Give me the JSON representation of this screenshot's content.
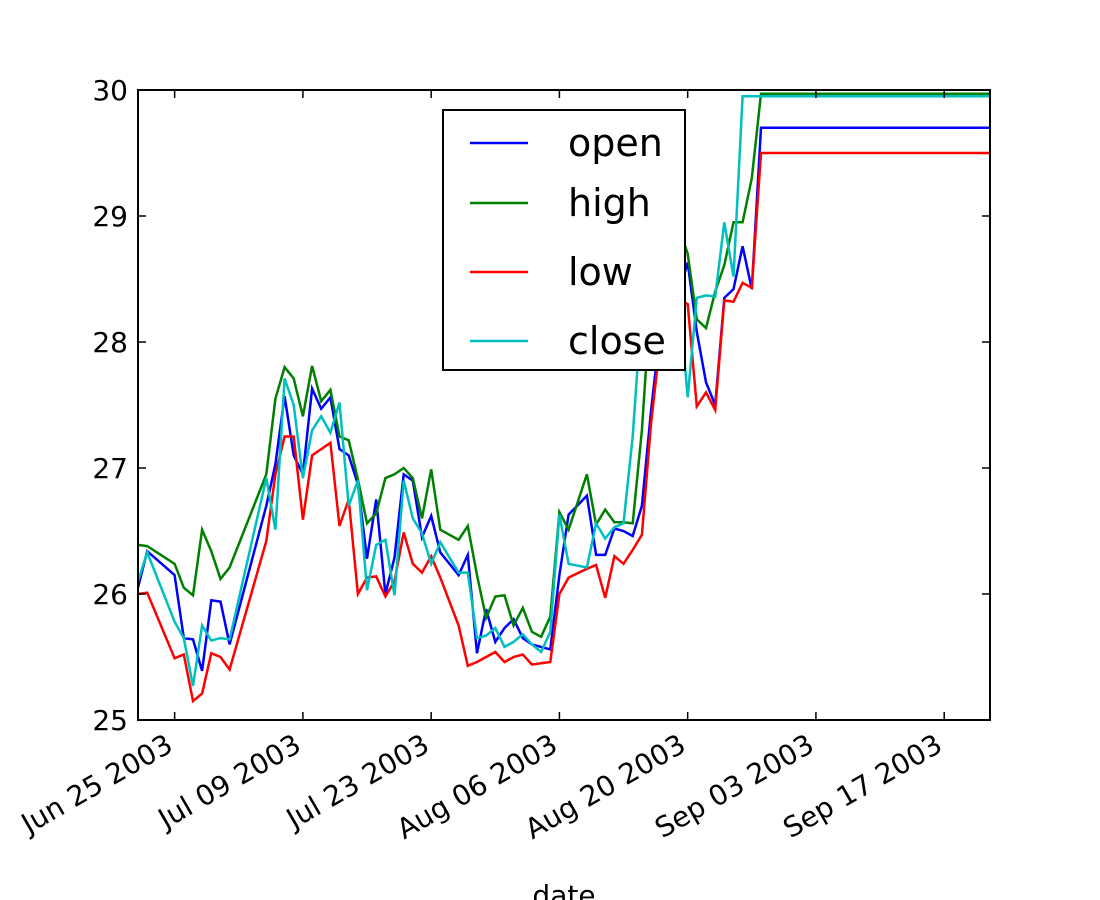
{
  "chart_data": {
    "type": "line",
    "title": "",
    "xlabel": "date",
    "ylabel": "",
    "xlim": [
      "2003-06-21",
      "2003-09-22"
    ],
    "ylim": [
      25,
      30
    ],
    "grid": false,
    "legend_position": "top-center",
    "y_ticks": [
      "25",
      "26",
      "27",
      "28",
      "29",
      "30"
    ],
    "x_ticks": [
      {
        "date": "2003-06-25",
        "label": "Jun 25 2003"
      },
      {
        "date": "2003-07-09",
        "label": "Jul 09 2003"
      },
      {
        "date": "2003-07-23",
        "label": "Jul 23 2003"
      },
      {
        "date": "2003-08-06",
        "label": "Aug 06 2003"
      },
      {
        "date": "2003-08-20",
        "label": "Aug 20 2003"
      },
      {
        "date": "2003-09-03",
        "label": "Sep 03 2003"
      },
      {
        "date": "2003-09-17",
        "label": "Sep 17 2003"
      }
    ],
    "x": [
      "2003-06-21",
      "2003-06-22",
      "2003-06-25",
      "2003-06-26",
      "2003-06-27",
      "2003-06-28",
      "2003-06-29",
      "2003-06-30",
      "2003-07-01",
      "2003-07-05",
      "2003-07-06",
      "2003-07-07",
      "2003-07-08",
      "2003-07-09",
      "2003-07-10",
      "2003-07-11",
      "2003-07-12",
      "2003-07-13",
      "2003-07-14",
      "2003-07-15",
      "2003-07-16",
      "2003-07-17",
      "2003-07-18",
      "2003-07-19",
      "2003-07-20",
      "2003-07-21",
      "2003-07-22",
      "2003-07-23",
      "2003-07-24",
      "2003-07-26",
      "2003-07-27",
      "2003-07-28",
      "2003-07-29",
      "2003-07-30",
      "2003-07-31",
      "2003-08-01",
      "2003-08-02",
      "2003-08-03",
      "2003-08-04",
      "2003-08-05",
      "2003-08-06",
      "2003-08-07",
      "2003-08-09",
      "2003-08-10",
      "2003-08-11",
      "2003-08-12",
      "2003-08-13",
      "2003-08-14",
      "2003-08-15",
      "2003-08-16",
      "2003-08-17",
      "2003-08-18",
      "2003-08-19",
      "2003-08-20",
      "2003-08-21",
      "2003-08-22",
      "2003-08-23",
      "2003-08-24",
      "2003-08-25",
      "2003-08-26",
      "2003-08-27",
      "2003-08-28",
      "2003-08-29",
      "2003-08-30",
      "2003-08-31",
      "2003-09-01",
      "2003-09-02",
      "2003-09-03",
      "2003-09-04",
      "2003-09-05",
      "2003-09-06",
      "2003-09-07",
      "2003-09-08",
      "2003-09-09",
      "2003-09-10",
      "2003-09-11",
      "2003-09-12",
      "2003-09-13",
      "2003-09-14",
      "2003-09-15",
      "2003-09-16",
      "2003-09-17",
      "2003-09-18",
      "2003-09-19",
      "2003-09-20",
      "2003-09-21",
      "2003-09-22"
    ],
    "series": [
      {
        "name": "open",
        "color": "#0000ff",
        "values": [
          26.05,
          26.34,
          26.15,
          25.65,
          25.64,
          25.39,
          25.95,
          25.94,
          25.6,
          26.7,
          27.03,
          27.57,
          27.1,
          26.95,
          27.63,
          27.47,
          27.56,
          27.15,
          27.1,
          26.87,
          26.28,
          26.75,
          26.0,
          26.29,
          26.95,
          26.9,
          26.45,
          26.62,
          26.33,
          26.15,
          26.31,
          25.53,
          25.88,
          25.62,
          25.73,
          25.8,
          25.65,
          25.6,
          25.58,
          25.56,
          26.15,
          26.63,
          26.78,
          26.31,
          26.31,
          26.52,
          26.5,
          26.46,
          26.7,
          27.45,
          28.1,
          28.23,
          28.39,
          28.63,
          28.08,
          27.68,
          27.5,
          28.35,
          28.42,
          28.76,
          28.42,
          29.7,
          29.7,
          29.7,
          29.7,
          29.7,
          29.7,
          29.7,
          29.7,
          29.7,
          29.7,
          29.7,
          29.7,
          29.7,
          29.7,
          29.7,
          29.7,
          29.7,
          29.7,
          29.7,
          29.7,
          29.7,
          29.7,
          29.7,
          29.7,
          29.7,
          29.7
        ]
      },
      {
        "name": "high",
        "color": "#008000",
        "values": [
          26.39,
          26.38,
          26.24,
          26.05,
          25.99,
          26.51,
          26.34,
          26.12,
          26.21,
          26.95,
          27.55,
          27.8,
          27.71,
          27.41,
          27.81,
          27.53,
          27.62,
          27.25,
          27.22,
          26.91,
          26.56,
          26.64,
          26.92,
          26.95,
          27.0,
          26.92,
          26.6,
          26.99,
          26.51,
          26.43,
          26.54,
          26.15,
          25.81,
          25.98,
          25.99,
          25.75,
          25.89,
          25.7,
          25.66,
          25.82,
          26.65,
          26.51,
          26.95,
          26.55,
          26.67,
          26.57,
          26.57,
          26.56,
          27.3,
          28.39,
          28.46,
          28.75,
          28.92,
          28.7,
          28.18,
          28.11,
          28.4,
          28.61,
          28.95,
          28.95,
          29.3,
          29.97,
          29.97,
          29.97,
          29.97,
          29.97,
          29.97,
          29.97,
          29.97,
          29.97,
          29.97,
          29.97,
          29.97,
          29.97,
          29.97,
          29.97,
          29.97,
          29.97,
          29.97,
          29.97,
          29.97,
          29.97,
          29.97,
          29.97,
          29.97,
          29.97,
          29.97
        ]
      },
      {
        "name": "low",
        "color": "#ff0000",
        "values": [
          26.0,
          26.01,
          25.49,
          25.52,
          25.15,
          25.21,
          25.53,
          25.5,
          25.4,
          26.42,
          26.95,
          27.25,
          27.25,
          26.59,
          27.1,
          27.15,
          27.2,
          26.54,
          26.75,
          26.0,
          26.13,
          26.14,
          25.98,
          26.1,
          26.49,
          26.24,
          26.17,
          26.3,
          26.13,
          25.75,
          25.43,
          25.46,
          25.5,
          25.54,
          25.46,
          25.5,
          25.52,
          25.44,
          25.45,
          25.46,
          26.0,
          26.13,
          26.2,
          26.23,
          25.97,
          26.3,
          26.24,
          26.35,
          26.47,
          27.35,
          28.0,
          28.18,
          28.34,
          28.3,
          27.49,
          27.6,
          27.46,
          28.33,
          28.32,
          28.47,
          28.43,
          29.5,
          29.5,
          29.5,
          29.5,
          29.5,
          29.5,
          29.5,
          29.5,
          29.5,
          29.5,
          29.5,
          29.5,
          29.5,
          29.5,
          29.5,
          29.5,
          29.5,
          29.5,
          29.5,
          29.5,
          29.5,
          29.5,
          29.5,
          29.5,
          29.5,
          29.5
        ]
      },
      {
        "name": "close",
        "color": "#00bfbf",
        "values": [
          26.1,
          26.33,
          25.78,
          25.65,
          25.27,
          25.75,
          25.63,
          25.65,
          25.64,
          26.92,
          26.51,
          27.71,
          27.5,
          26.92,
          27.3,
          27.41,
          27.28,
          27.52,
          26.7,
          26.9,
          26.03,
          26.39,
          26.43,
          25.99,
          26.9,
          26.6,
          26.48,
          26.24,
          26.41,
          26.17,
          26.17,
          25.65,
          25.67,
          25.73,
          25.58,
          25.62,
          25.68,
          25.6,
          25.54,
          25.7,
          26.63,
          26.24,
          26.21,
          26.56,
          26.44,
          26.53,
          26.56,
          27.25,
          28.3,
          28.42,
          28.39,
          28.85,
          28.4,
          27.56,
          28.35,
          28.37,
          28.36,
          28.95,
          28.52,
          29.95,
          29.95,
          29.95,
          29.95,
          29.95,
          29.95,
          29.95,
          29.95,
          29.95,
          29.95,
          29.95,
          29.95,
          29.95,
          29.95,
          29.95,
          29.95,
          29.95,
          29.95,
          29.95,
          29.95,
          29.95,
          29.95,
          29.95,
          29.95,
          29.95,
          29.95,
          29.95,
          29.95
        ]
      }
    ]
  }
}
